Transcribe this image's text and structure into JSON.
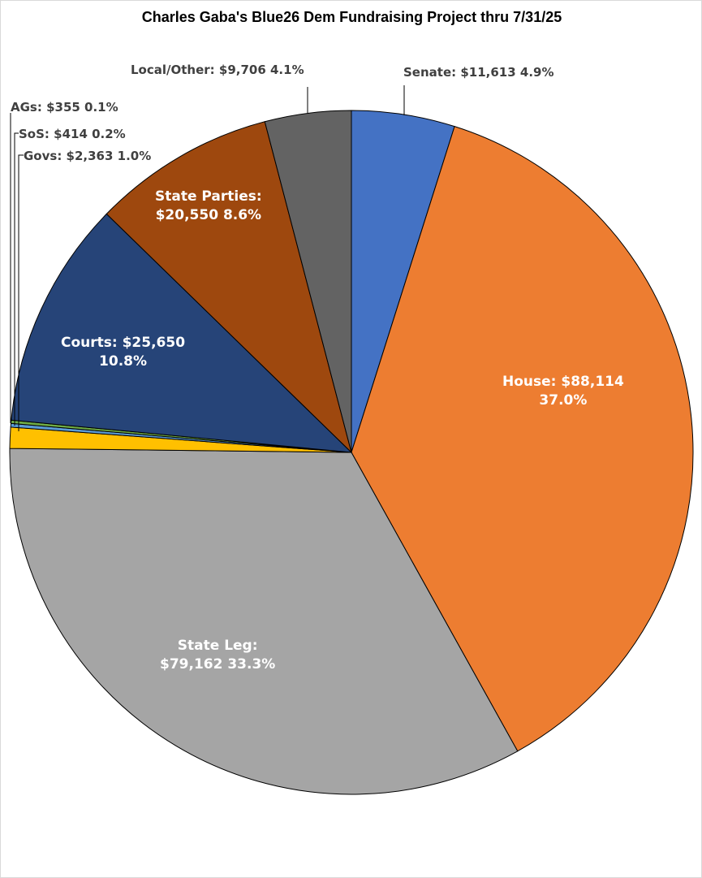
{
  "chart_data": {
    "type": "pie",
    "title": "Charles Gaba's Blue26 Dem Fundraising Project thru 7/31/25",
    "slices": [
      {
        "name": "Senate",
        "value": 11613,
        "label": "Senate: $11,613 4.9%",
        "color": "#4472C4"
      },
      {
        "name": "House",
        "value": 88114,
        "label": "House: $88,114 37.0%",
        "color": "#ED7D31"
      },
      {
        "name": "State Leg",
        "value": 79162,
        "label": "State Leg: $79,162 33.3%",
        "color": "#A5A5A5"
      },
      {
        "name": "Govs",
        "value": 2363,
        "label": "Govs: $2,363 1.0%",
        "color": "#FFC000"
      },
      {
        "name": "SoS",
        "value": 414,
        "label": "SoS: $414 0.2%",
        "color": "#5B9BD5"
      },
      {
        "name": "AGs",
        "value": 355,
        "label": "AGs: $355 0.1%",
        "color": "#70AD47"
      },
      {
        "name": "Courts",
        "value": 25650,
        "label": "Courts: $25,650 10.8%",
        "color": "#264478"
      },
      {
        "name": "State Parties",
        "value": 20550,
        "label": "State Parties: $20,550 8.6%",
        "color": "#9E480E"
      },
      {
        "name": "Local/Other",
        "value": 9706,
        "label": "Local/Other: $9,706 4.1%",
        "color": "#636363"
      }
    ],
    "label_lines": {
      "Senate": [
        "Senate: $11,613 4.9%"
      ],
      "House": [
        "House: $88,114",
        "37.0%"
      ],
      "State Leg": [
        "State Leg:",
        "$79,162 33.3%"
      ],
      "Govs": [
        "Govs: $2,363 1.0%"
      ],
      "SoS": [
        "SoS: $414 0.2%"
      ],
      "AGs": [
        "AGs: $355 0.1%"
      ],
      "Courts": [
        "Courts: $25,650",
        "10.8%"
      ],
      "State Parties": [
        "State Parties:",
        "$20,550 8.6%"
      ],
      "Local/Other": [
        "Local/Other: $9,706 4.1%"
      ]
    },
    "start_angle": "12 o'clock",
    "direction": "clockwise",
    "legend": "none"
  }
}
